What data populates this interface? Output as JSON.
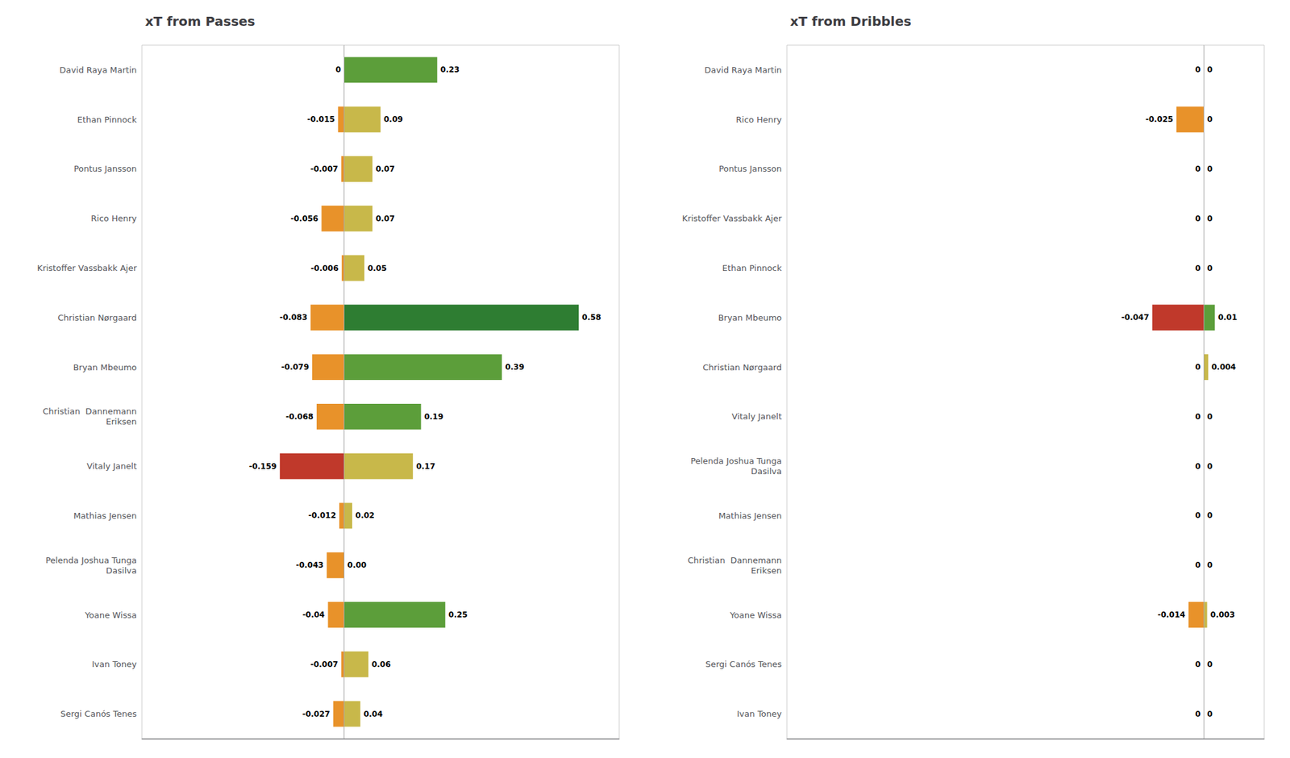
{
  "chart_data": [
    {
      "type": "bar",
      "title": "xT from Passes",
      "orientation": "horizontal",
      "categories": [
        "David Raya Martin",
        "Ethan Pinnock",
        "Pontus Jansson",
        "Rico Henry",
        "Kristoffer Vassbakk Ajer",
        "Christian Nørgaard",
        "Bryan Mbeumo",
        "Christian  Dannemann\nEriksen",
        "Vitaly Janelt",
        "Mathias Jensen",
        "Pelenda Joshua Tunga\nDasilva",
        "Yoane Wissa",
        "Ivan Toney",
        "Sergi Canós Tenes"
      ],
      "series": [
        {
          "values": [
            0,
            -0.015,
            -0.007,
            -0.056,
            -0.006,
            -0.083,
            -0.079,
            -0.068,
            -0.159,
            -0.012,
            -0.043,
            -0.04,
            -0.007,
            -0.027
          ],
          "value_labels": [
            "0",
            "-0.015",
            "-0.007",
            "-0.056",
            "-0.006",
            "-0.083",
            "-0.079",
            "-0.068",
            "-0.159",
            "-0.012",
            "-0.043",
            "-0.04",
            "-0.007",
            "-0.027"
          ],
          "colors": [
            "#E8922A",
            "#E8922A",
            "#E8922A",
            "#E8922A",
            "#E8922A",
            "#E8922A",
            "#E8922A",
            "#E8922A",
            "#C0392B",
            "#E8922A",
            "#E8922A",
            "#E8922A",
            "#E8922A",
            "#E8922A"
          ]
        },
        {
          "values": [
            0.23,
            0.09,
            0.07,
            0.07,
            0.05,
            0.58,
            0.39,
            0.19,
            0.17,
            0.02,
            0.0,
            0.25,
            0.06,
            0.04
          ],
          "value_labels": [
            "0.23",
            "0.09",
            "0.07",
            "0.07",
            "0.05",
            "0.58",
            "0.39",
            "0.19",
            "0.17",
            "0.02",
            "0.00",
            "0.25",
            "0.06",
            "0.04"
          ],
          "colors": [
            "#5C9E3A",
            "#C8B84A",
            "#C8B84A",
            "#C8B84A",
            "#C8B84A",
            "#2E7D32",
            "#5C9E3A",
            "#5C9E3A",
            "#C8B84A",
            "#C8B84A",
            "#C8B84A",
            "#5C9E3A",
            "#C8B84A",
            "#C8B84A"
          ]
        }
      ],
      "xlim": [
        -0.5,
        0.68
      ],
      "data_labels": true,
      "tick_labels": "y",
      "grid": false
    },
    {
      "type": "bar",
      "title": "xT from Dribbles",
      "orientation": "horizontal",
      "categories": [
        "David Raya Martin",
        "Rico Henry",
        "Pontus Jansson",
        "Kristoffer Vassbakk Ajer",
        "Ethan Pinnock",
        "Bryan Mbeumo",
        "Christian Nørgaard",
        "Vitaly Janelt",
        "Pelenda Joshua Tunga\nDasilva",
        "Mathias Jensen",
        "Christian  Dannemann\nEriksen",
        "Yoane Wissa",
        "Sergi Canós Tenes",
        "Ivan Toney"
      ],
      "series": [
        {
          "values": [
            0,
            -0.025,
            0,
            0,
            0,
            -0.047,
            0,
            0,
            0,
            0,
            0,
            -0.014,
            0,
            0
          ],
          "value_labels": [
            "0",
            "-0.025",
            "0",
            "0",
            "0",
            "-0.047",
            "0",
            "0",
            "0",
            "0",
            "0",
            "-0.014",
            "0",
            "0"
          ],
          "colors": [
            "#E8922A",
            "#E8922A",
            "#E8922A",
            "#E8922A",
            "#E8922A",
            "#C0392B",
            "#E8922A",
            "#E8922A",
            "#E8922A",
            "#E8922A",
            "#E8922A",
            "#E8922A",
            "#E8922A",
            "#E8922A"
          ]
        },
        {
          "values": [
            0,
            0,
            0,
            0,
            0,
            0.01,
            0.004,
            0,
            0,
            0,
            0,
            0.003,
            0,
            0
          ],
          "value_labels": [
            "0",
            "0",
            "0",
            "0",
            "0",
            "0.01",
            "0.004",
            "0",
            "0",
            "0",
            "0",
            "0.003",
            "0",
            "0"
          ],
          "colors": [
            "#C8B84A",
            "#C8B84A",
            "#C8B84A",
            "#C8B84A",
            "#C8B84A",
            "#5C9E3A",
            "#C8B84A",
            "#C8B84A",
            "#C8B84A",
            "#C8B84A",
            "#C8B84A",
            "#C8B84A",
            "#C8B84A",
            "#C8B84A"
          ]
        }
      ],
      "xlim": [
        -0.38,
        0.055
      ],
      "data_labels": true,
      "tick_labels": "y",
      "grid": false
    }
  ]
}
